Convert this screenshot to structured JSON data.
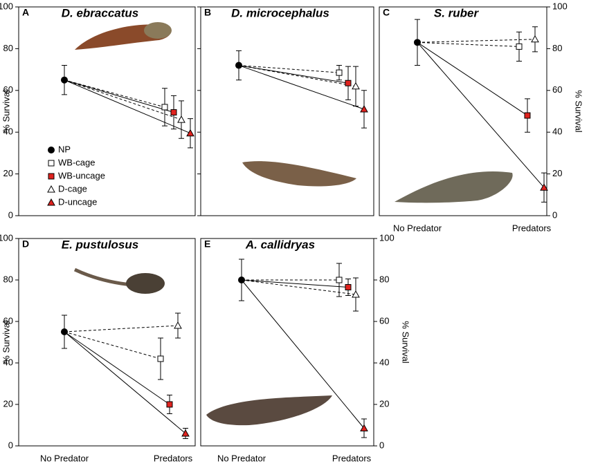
{
  "chart_data": [
    {
      "type": "line",
      "letter": "A",
      "title": "D. ebraccatus",
      "y_label": "% Survival",
      "ylim": [
        0,
        100
      ],
      "yticks": [
        0,
        20,
        40,
        60,
        80,
        100
      ],
      "series": [
        {
          "name": "NP",
          "marker": "circle",
          "color": "#000000",
          "dash": false
        },
        {
          "name": "WB-cage",
          "marker": "square",
          "color": "#ffffff",
          "dash": true
        },
        {
          "name": "WB-uncage",
          "marker": "square",
          "color": "#e0231f",
          "dash": false
        },
        {
          "name": "D-cage",
          "marker": "triangle",
          "color": "#ffffff",
          "dash": true
        },
        {
          "name": "D-uncage",
          "marker": "triangle",
          "color": "#e0231f",
          "dash": false
        }
      ],
      "np": {
        "value": 65,
        "error": 7
      },
      "treatments": [
        {
          "value": 52,
          "error": 9
        },
        {
          "value": 49.5,
          "error": 8
        },
        {
          "value": 46,
          "error": 9
        },
        {
          "value": 39.5,
          "error": 7
        }
      ]
    },
    {
      "type": "line",
      "letter": "B",
      "title": "D. microcephalus",
      "ylim": [
        0,
        100
      ],
      "yticks": [
        0,
        20,
        40,
        60,
        80,
        100
      ],
      "np": {
        "value": 72,
        "error": 7
      },
      "treatments": [
        {
          "value": 68.5,
          "error": 3.5
        },
        {
          "value": 63.5,
          "error": 8
        },
        {
          "value": 62,
          "error": 9.5
        },
        {
          "value": 51,
          "error": 9
        }
      ]
    },
    {
      "type": "line",
      "letter": "C",
      "title": "S. ruber",
      "y_label": "% Survival",
      "ylim": [
        0,
        100
      ],
      "yticks": [
        0,
        20,
        40,
        60,
        80,
        100
      ],
      "categories": [
        "No Predator",
        "Predators"
      ],
      "np": {
        "value": 83,
        "error": 11
      },
      "treatments": [
        {
          "value": 81,
          "error": 7
        },
        {
          "value": 48,
          "error": 8
        },
        {
          "value": 84.5,
          "error": 6
        },
        {
          "value": 13.5,
          "error": 7
        }
      ]
    },
    {
      "type": "line",
      "letter": "D",
      "title": "E. pustulosus",
      "y_label": "% Survival",
      "ylim": [
        0,
        100
      ],
      "yticks": [
        0,
        20,
        40,
        60,
        80,
        100
      ],
      "categories": [
        "No Predator",
        "Predators"
      ],
      "np": {
        "value": 55,
        "error": 8
      },
      "treatments": [
        {
          "value": 42,
          "error": 10
        },
        {
          "value": 20,
          "error": 4.5
        },
        {
          "value": 58,
          "error": 6
        },
        {
          "value": 6,
          "error": 2.5
        }
      ]
    },
    {
      "type": "line",
      "letter": "E",
      "title": "A. callidryas",
      "y_label": "% Survival",
      "ylim": [
        0,
        100
      ],
      "yticks": [
        0,
        20,
        40,
        60,
        80,
        100
      ],
      "categories": [
        "No Predator",
        "Predators"
      ],
      "np": {
        "value": 80,
        "error": 10
      },
      "treatments": [
        {
          "value": 80,
          "error": 8
        },
        {
          "value": 76.5,
          "error": 4
        },
        {
          "value": 73,
          "error": 8
        },
        {
          "value": 8.5,
          "error": 4.5
        }
      ]
    }
  ]
}
